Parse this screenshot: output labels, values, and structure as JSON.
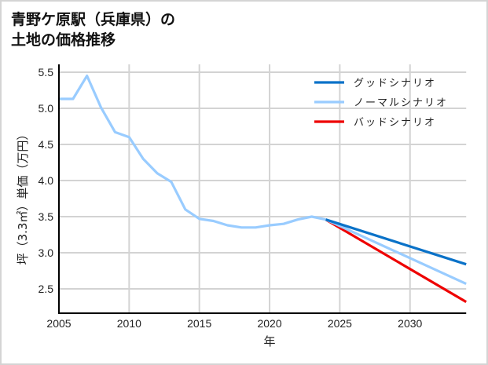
{
  "title": {
    "line1": "青野ケ原駅（兵庫県）の",
    "line2": "土地の価格推移"
  },
  "colors": {
    "good": "#0a72c8",
    "normal": "#99ccff",
    "bad": "#ee0000",
    "grid": "#d3d3d3",
    "axis": "#000000"
  },
  "chart_data": {
    "type": "line",
    "title": "青野ケ原駅（兵庫県）の土地の価格推移",
    "xlabel": "年",
    "ylabel": "坪（3.3㎡）単価（万円）",
    "xlim": [
      2005,
      2034
    ],
    "ylim": [
      2.15,
      5.6
    ],
    "xticks": [
      2005,
      2010,
      2015,
      2020,
      2025,
      2030
    ],
    "yticks": [
      2.5,
      3.0,
      3.5,
      4.0,
      4.5,
      5.0,
      5.5
    ],
    "grid": true,
    "legend_position": "upper right",
    "series": [
      {
        "name": "ノーマルシナリオ",
        "segment": "historical",
        "x": [
          2005,
          2006,
          2007,
          2008,
          2009,
          2010,
          2011,
          2012,
          2013,
          2014,
          2015,
          2016,
          2017,
          2018,
          2019,
          2020,
          2021,
          2022,
          2023,
          2024
        ],
        "values": [
          5.13,
          5.13,
          5.45,
          5.01,
          4.67,
          4.6,
          4.3,
          4.1,
          3.98,
          3.6,
          3.47,
          3.44,
          3.38,
          3.35,
          3.35,
          3.38,
          3.4,
          3.46,
          3.5,
          3.46
        ]
      },
      {
        "name": "グッドシナリオ",
        "x": [
          2024,
          2034
        ],
        "values": [
          3.46,
          2.84
        ]
      },
      {
        "name": "ノーマルシナリオ",
        "x": [
          2024,
          2034
        ],
        "values": [
          3.46,
          2.57
        ]
      },
      {
        "name": "バッドシナリオ",
        "x": [
          2024,
          2034
        ],
        "values": [
          3.46,
          2.32
        ]
      }
    ]
  },
  "legend": [
    {
      "label": "グッドシナリオ",
      "color": "#0a72c8"
    },
    {
      "label": "ノーマルシナリオ",
      "color": "#99ccff"
    },
    {
      "label": "バッドシナリオ",
      "color": "#ee0000"
    }
  ],
  "axes": {
    "xlabel": "年",
    "ylabel": "坪（3.3㎡）単価（万円）",
    "xtick_labels": [
      "2005",
      "2010",
      "2015",
      "2020",
      "2025",
      "2030"
    ],
    "ytick_labels": [
      "5.5",
      "5.0",
      "4.5",
      "4.0",
      "3.5",
      "3.0",
      "2.5"
    ]
  }
}
